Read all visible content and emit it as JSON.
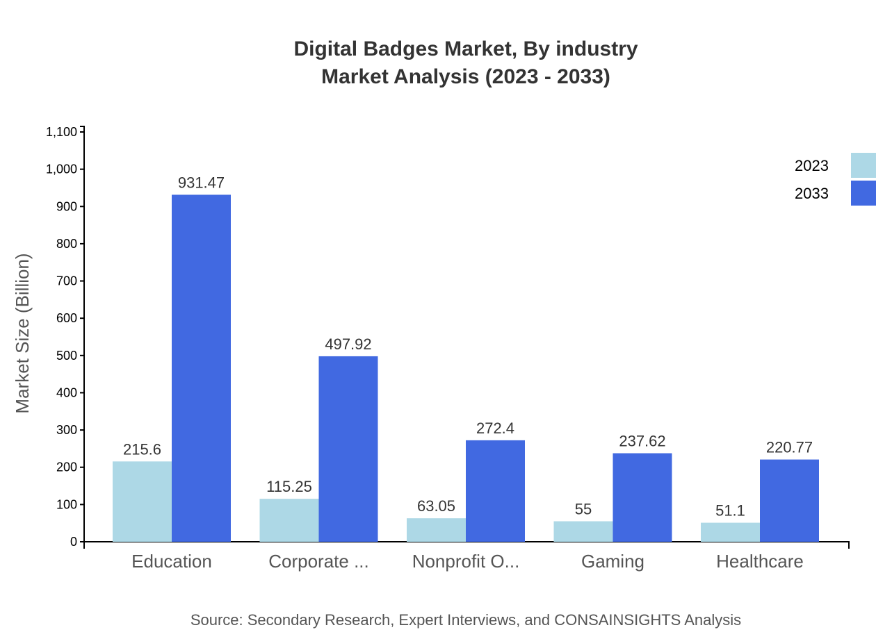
{
  "chart_data": {
    "type": "bar",
    "title": "Digital Badges Market, By industry",
    "subtitle": "Market Analysis (2023 - 2033)",
    "xlabel": "",
    "ylabel": "Market Size (Billion)",
    "ylim": [
      0,
      1100
    ],
    "yticks": [
      "0",
      "100",
      "200",
      "300",
      "400",
      "500",
      "600",
      "700",
      "800",
      "900",
      "1,000",
      "1,100"
    ],
    "categories": [
      "Education",
      "Corporate ...",
      "Nonprofit O...",
      "Gaming",
      "Healthcare"
    ],
    "series": [
      {
        "name": "2023",
        "color": "#add8e6",
        "values": [
          215.6,
          115.25,
          63.05,
          55,
          51.1
        ]
      },
      {
        "name": "2033",
        "color": "#4169e1",
        "values": [
          931.47,
          497.92,
          272.4,
          237.62,
          220.77
        ]
      }
    ],
    "legend_position": "top-right",
    "grid": false,
    "source": "Source: Secondary Research, Expert Interviews, and CONSAINSIGHTS Analysis"
  }
}
